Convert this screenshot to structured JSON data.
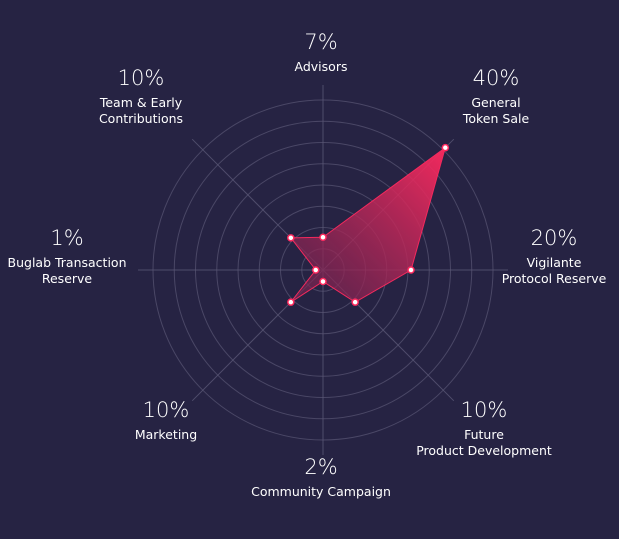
{
  "chart_data": {
    "type": "radar",
    "title": "",
    "max": 40,
    "rings": 8,
    "unit": "%",
    "categories": [
      {
        "name": [
          "Advisors"
        ],
        "value": 7,
        "label": "7%"
      },
      {
        "name": [
          "General",
          "Token Sale"
        ],
        "value": 40,
        "label": "40%"
      },
      {
        "name": [
          "Vigilante",
          "Protocol Reserve"
        ],
        "value": 20,
        "label": "20%"
      },
      {
        "name": [
          "Future",
          "Product Development"
        ],
        "value": 10,
        "label": "10%"
      },
      {
        "name": [
          "Community Campaign"
        ],
        "value": 2,
        "label": "2%"
      },
      {
        "name": [
          "Marketing"
        ],
        "value": 10,
        "label": "10%"
      },
      {
        "name": [
          "Buglab Transaction",
          "Reserve"
        ],
        "value": 1,
        "label": "1%"
      },
      {
        "name": [
          "Team & Early",
          "Contributions"
        ],
        "value": 10,
        "label": "10%"
      }
    ],
    "colors": {
      "fill_start": "#ff2a5f",
      "fill_end": "#6a2450",
      "grid": "#5a5775",
      "point": "#ffffff",
      "point_stroke": "#ff2a5f"
    }
  }
}
